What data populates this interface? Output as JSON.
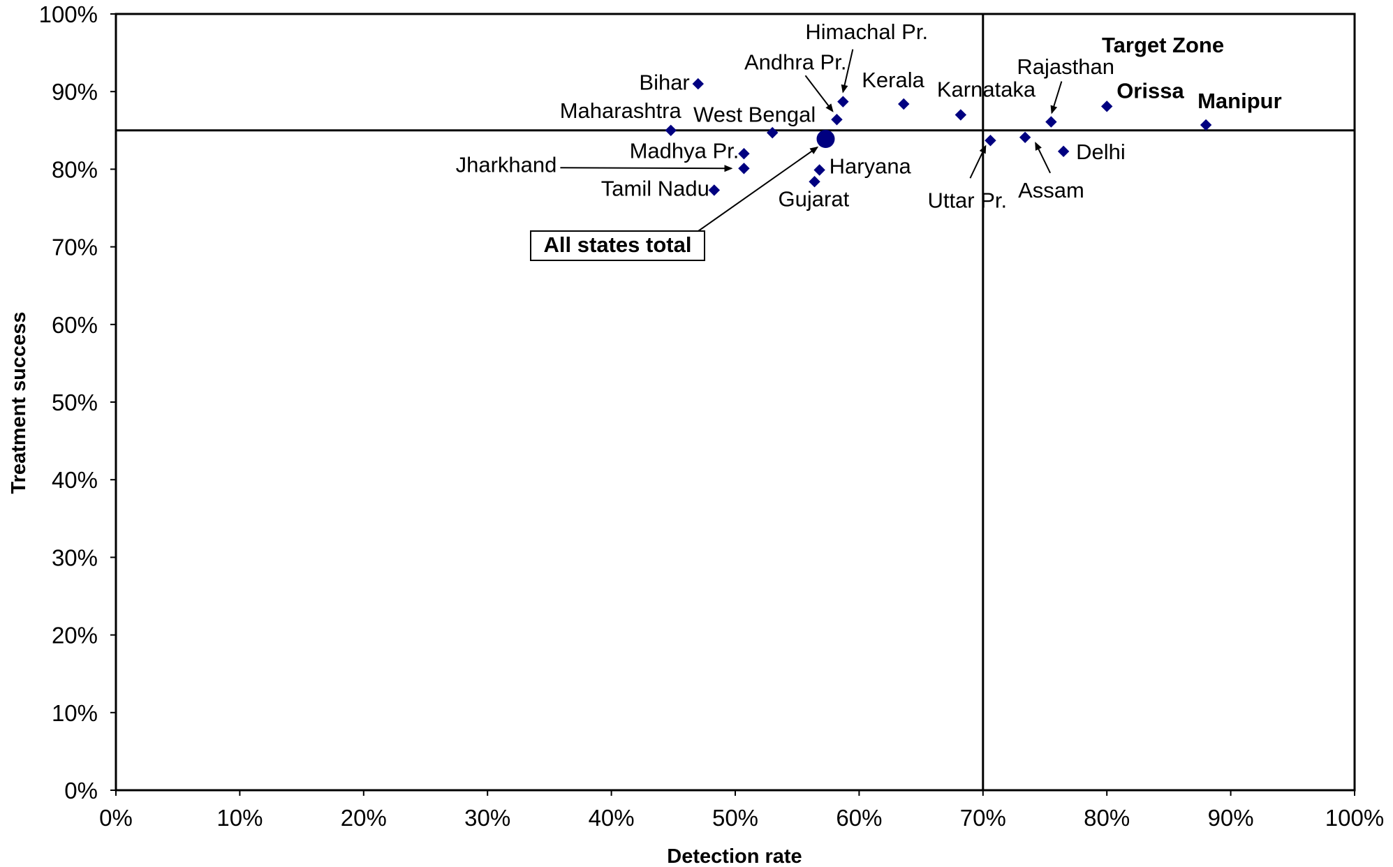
{
  "chart_data": {
    "type": "scatter",
    "xlabel": "Detection rate",
    "ylabel": "Treatment success",
    "xlim": [
      0,
      1
    ],
    "ylim": [
      0,
      1
    ],
    "x_ticks": [
      "0%",
      "10%",
      "20%",
      "30%",
      "40%",
      "50%",
      "60%",
      "70%",
      "80%",
      "90%",
      "100%"
    ],
    "y_ticks": [
      "0%",
      "10%",
      "20%",
      "30%",
      "40%",
      "50%",
      "60%",
      "70%",
      "80%",
      "90%",
      "100%"
    ],
    "grid": false,
    "marker_color": "#000080",
    "target_lines": {
      "x": 0.7,
      "y": 0.85
    },
    "target_zone_label": "Target Zone",
    "points": [
      {
        "label": "Bihar",
        "x": 0.47,
        "y": 0.91
      },
      {
        "label": "Maharashtra",
        "x": 0.448,
        "y": 0.85
      },
      {
        "label": "West Bengal",
        "x": 0.53,
        "y": 0.847
      },
      {
        "label": "Madhya Pr.",
        "x": 0.507,
        "y": 0.82
      },
      {
        "label": "Jharkhand",
        "x": 0.507,
        "y": 0.801
      },
      {
        "label": "Tamil Nadu",
        "x": 0.483,
        "y": 0.773
      },
      {
        "label": "Andhra Pr.",
        "x": 0.582,
        "y": 0.864
      },
      {
        "label": "Himachal Pr.",
        "x": 0.587,
        "y": 0.887
      },
      {
        "label": "Haryana",
        "x": 0.568,
        "y": 0.799
      },
      {
        "label": "Gujarat",
        "x": 0.564,
        "y": 0.784
      },
      {
        "label": "Kerala",
        "x": 0.636,
        "y": 0.884
      },
      {
        "label": "Karnataka",
        "x": 0.682,
        "y": 0.87
      },
      {
        "label": "Uttar Pr.",
        "x": 0.706,
        "y": 0.837
      },
      {
        "label": "Assam",
        "x": 0.734,
        "y": 0.841
      },
      {
        "label": "Rajasthan",
        "x": 0.755,
        "y": 0.861
      },
      {
        "label": "Delhi",
        "x": 0.765,
        "y": 0.823
      },
      {
        "label": "Orissa",
        "x": 0.8,
        "y": 0.881
      },
      {
        "label": "Manipur",
        "x": 0.88,
        "y": 0.857
      }
    ],
    "total": {
      "label": "All states total",
      "x": 0.573,
      "y": 0.839
    }
  }
}
